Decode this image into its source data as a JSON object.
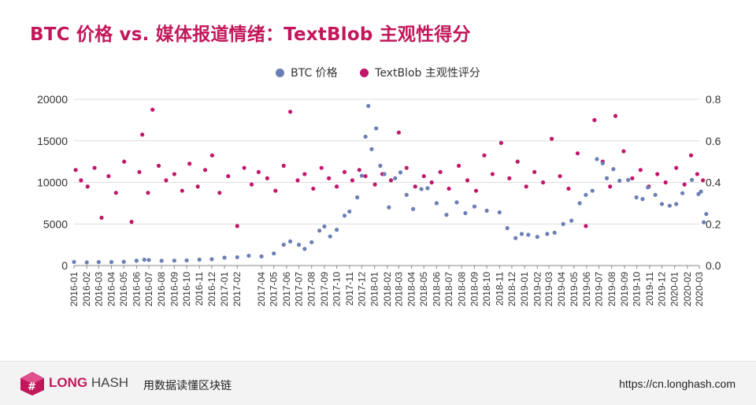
{
  "page": {
    "title": "BTC 价格 vs. 媒体报道情绪：TextBlob 主观性得分"
  },
  "colors": {
    "accent": "#c2185b",
    "btc": "#6a7fb5",
    "textblob": "#c2166b"
  },
  "footer": {
    "brand_bold": "LONG",
    "brand_light": "HASH",
    "slogan": "用数据读懂区块链",
    "url": "https://cn.longhash.com"
  },
  "chart_data": {
    "type": "scatter",
    "title": "BTC 价格 vs. 媒体报道情绪：TextBlob 主观性得分",
    "legend_position": "top-center",
    "grid": true,
    "x_labels": [
      "2016-01",
      "2016-02",
      "2016-03",
      "2016-04",
      "2016-05",
      "2016-06",
      "2016-07",
      "2016-08",
      "2016-09",
      "2016-10",
      "2016-11",
      "2016-12",
      "2017-01",
      "2017-02",
      "2017-04",
      "2017-05",
      "2017-06",
      "2017-07",
      "2017-08",
      "2017-09",
      "2017-10",
      "2017-11",
      "2017-12",
      "2018-01",
      "2018-02",
      "2018-03",
      "2018-04",
      "2018-05",
      "2018-06",
      "2018-07",
      "2018-08",
      "2018-09",
      "2018-10",
      "2018-11",
      "2018-12",
      "2019-01",
      "2019-02",
      "2019-03",
      "2019-04",
      "2019-05",
      "2019-06",
      "2019-07",
      "2019-08",
      "2019-09",
      "2019-10",
      "2019-11",
      "2019-12",
      "2020-01",
      "2020-02",
      "2020-03"
    ],
    "y_left": {
      "range": [
        0,
        20000
      ],
      "ticks": [
        0,
        5000,
        10000,
        15000,
        20000
      ]
    },
    "y_right": {
      "range": [
        0,
        0.8
      ],
      "ticks": [
        "0.0",
        "0.2",
        "0.4",
        "0.6",
        "0.8"
      ]
    },
    "series": [
      {
        "name": "BTC 价格",
        "axis": "left",
        "points": [
          [
            "2016-01-01",
            430
          ],
          [
            "2016-02-01",
            380
          ],
          [
            "2016-03-01",
            415
          ],
          [
            "2016-04-01",
            420
          ],
          [
            "2016-05-01",
            450
          ],
          [
            "2016-06-01",
            580
          ],
          [
            "2016-06-20",
            700
          ],
          [
            "2016-07-01",
            670
          ],
          [
            "2016-08-01",
            580
          ],
          [
            "2016-09-01",
            600
          ],
          [
            "2016-10-01",
            620
          ],
          [
            "2016-11-01",
            710
          ],
          [
            "2016-12-01",
            760
          ],
          [
            "2017-01-01",
            950
          ],
          [
            "2017-02-01",
            1000
          ],
          [
            "2017-03-01",
            1180
          ],
          [
            "2017-04-01",
            1100
          ],
          [
            "2017-05-01",
            1450
          ],
          [
            "2017-05-25",
            2500
          ],
          [
            "2017-06-10",
            2900
          ],
          [
            "2017-07-01",
            2500
          ],
          [
            "2017-07-15",
            2000
          ],
          [
            "2017-08-01",
            2800
          ],
          [
            "2017-08-20",
            4200
          ],
          [
            "2017-09-01",
            4700
          ],
          [
            "2017-09-15",
            3500
          ],
          [
            "2017-10-01",
            4300
          ],
          [
            "2017-10-20",
            6000
          ],
          [
            "2017-11-01",
            6500
          ],
          [
            "2017-11-20",
            8200
          ],
          [
            "2017-12-01",
            10800
          ],
          [
            "2017-12-10",
            15500
          ],
          [
            "2017-12-17",
            19200
          ],
          [
            "2017-12-25",
            14000
          ],
          [
            "2018-01-05",
            16500
          ],
          [
            "2018-01-15",
            12000
          ],
          [
            "2018-01-25",
            11000
          ],
          [
            "2018-02-05",
            7000
          ],
          [
            "2018-02-20",
            10500
          ],
          [
            "2018-03-05",
            11200
          ],
          [
            "2018-03-20",
            8500
          ],
          [
            "2018-04-05",
            6800
          ],
          [
            "2018-04-25",
            9200
          ],
          [
            "2018-05-10",
            9300
          ],
          [
            "2018-06-01",
            7500
          ],
          [
            "2018-06-25",
            6100
          ],
          [
            "2018-07-20",
            7600
          ],
          [
            "2018-08-10",
            6300
          ],
          [
            "2018-09-01",
            7100
          ],
          [
            "2018-10-01",
            6600
          ],
          [
            "2018-11-01",
            6400
          ],
          [
            "2018-11-20",
            4500
          ],
          [
            "2018-12-10",
            3300
          ],
          [
            "2018-12-25",
            3800
          ],
          [
            "2019-01-10",
            3700
          ],
          [
            "2019-02-01",
            3450
          ],
          [
            "2019-02-25",
            3800
          ],
          [
            "2019-03-15",
            3950
          ],
          [
            "2019-04-05",
            5000
          ],
          [
            "2019-04-25",
            5400
          ],
          [
            "2019-05-15",
            7500
          ],
          [
            "2019-05-30",
            8500
          ],
          [
            "2019-06-15",
            9000
          ],
          [
            "2019-06-26",
            12800
          ],
          [
            "2019-07-10",
            12300
          ],
          [
            "2019-07-20",
            10500
          ],
          [
            "2019-08-05",
            11600
          ],
          [
            "2019-08-20",
            10200
          ],
          [
            "2019-09-10",
            10300
          ],
          [
            "2019-09-30",
            8200
          ],
          [
            "2019-10-15",
            8000
          ],
          [
            "2019-10-28",
            9400
          ],
          [
            "2019-11-15",
            8500
          ],
          [
            "2019-12-01",
            7400
          ],
          [
            "2019-12-20",
            7200
          ],
          [
            "2020-01-05",
            7400
          ],
          [
            "2020-01-20",
            8700
          ],
          [
            "2020-02-12",
            10300
          ],
          [
            "2020-02-28",
            8600
          ],
          [
            "2020-03-05",
            8900
          ],
          [
            "2020-03-12",
            5200
          ],
          [
            "2020-03-18",
            6200
          ]
        ]
      },
      {
        "name": "TextBlob 主观性评分",
        "axis": "right",
        "points": [
          [
            "2016-01-05",
            0.46
          ],
          [
            "2016-01-18",
            0.41
          ],
          [
            "2016-02-03",
            0.38
          ],
          [
            "2016-02-20",
            0.47
          ],
          [
            "2016-03-08",
            0.23
          ],
          [
            "2016-03-25",
            0.43
          ],
          [
            "2016-04-12",
            0.35
          ],
          [
            "2016-05-02",
            0.5
          ],
          [
            "2016-05-20",
            0.21
          ],
          [
            "2016-06-08",
            0.45
          ],
          [
            "2016-06-15",
            0.63
          ],
          [
            "2016-06-29",
            0.35
          ],
          [
            "2016-07-10",
            0.75
          ],
          [
            "2016-07-25",
            0.48
          ],
          [
            "2016-08-12",
            0.41
          ],
          [
            "2016-09-01",
            0.44
          ],
          [
            "2016-09-20",
            0.36
          ],
          [
            "2016-10-08",
            0.49
          ],
          [
            "2016-10-28",
            0.38
          ],
          [
            "2016-11-15",
            0.46
          ],
          [
            "2016-12-02",
            0.53
          ],
          [
            "2016-12-20",
            0.35
          ],
          [
            "2017-01-10",
            0.43
          ],
          [
            "2017-02-01",
            0.19
          ],
          [
            "2017-02-18",
            0.47
          ],
          [
            "2017-03-08",
            0.39
          ],
          [
            "2017-03-25",
            0.45
          ],
          [
            "2017-04-15",
            0.42
          ],
          [
            "2017-05-05",
            0.36
          ],
          [
            "2017-05-25",
            0.48
          ],
          [
            "2017-06-10",
            0.74
          ],
          [
            "2017-06-28",
            0.41
          ],
          [
            "2017-07-15",
            0.44
          ],
          [
            "2017-08-05",
            0.37
          ],
          [
            "2017-08-25",
            0.47
          ],
          [
            "2017-09-12",
            0.42
          ],
          [
            "2017-10-01",
            0.38
          ],
          [
            "2017-10-20",
            0.45
          ],
          [
            "2017-11-08",
            0.41
          ],
          [
            "2017-11-25",
            0.46
          ],
          [
            "2017-12-10",
            0.43
          ],
          [
            "2018-01-02",
            0.39
          ],
          [
            "2018-01-20",
            0.44
          ],
          [
            "2018-02-10",
            0.41
          ],
          [
            "2018-03-01",
            0.64
          ],
          [
            "2018-03-20",
            0.47
          ],
          [
            "2018-04-10",
            0.38
          ],
          [
            "2018-05-01",
            0.43
          ],
          [
            "2018-05-20",
            0.4
          ],
          [
            "2018-06-10",
            0.45
          ],
          [
            "2018-07-01",
            0.37
          ],
          [
            "2018-07-25",
            0.48
          ],
          [
            "2018-08-15",
            0.41
          ],
          [
            "2018-09-05",
            0.36
          ],
          [
            "2018-09-25",
            0.53
          ],
          [
            "2018-10-15",
            0.44
          ],
          [
            "2018-11-05",
            0.59
          ],
          [
            "2018-11-25",
            0.42
          ],
          [
            "2018-12-15",
            0.5
          ],
          [
            "2019-01-05",
            0.38
          ],
          [
            "2019-01-25",
            0.45
          ],
          [
            "2019-02-15",
            0.4
          ],
          [
            "2019-03-08",
            0.61
          ],
          [
            "2019-03-28",
            0.43
          ],
          [
            "2019-04-18",
            0.37
          ],
          [
            "2019-05-10",
            0.54
          ],
          [
            "2019-05-30",
            0.19
          ],
          [
            "2019-06-20",
            0.7
          ],
          [
            "2019-07-10",
            0.5
          ],
          [
            "2019-07-28",
            0.38
          ],
          [
            "2019-08-10",
            0.72
          ],
          [
            "2019-08-30",
            0.55
          ],
          [
            "2019-09-20",
            0.42
          ],
          [
            "2019-10-10",
            0.46
          ],
          [
            "2019-10-30",
            0.38
          ],
          [
            "2019-11-20",
            0.44
          ],
          [
            "2019-12-10",
            0.4
          ],
          [
            "2020-01-05",
            0.47
          ],
          [
            "2020-01-25",
            0.39
          ],
          [
            "2020-02-10",
            0.53
          ],
          [
            "2020-02-25",
            0.44
          ],
          [
            "2020-03-10",
            0.41
          ]
        ]
      }
    ]
  }
}
